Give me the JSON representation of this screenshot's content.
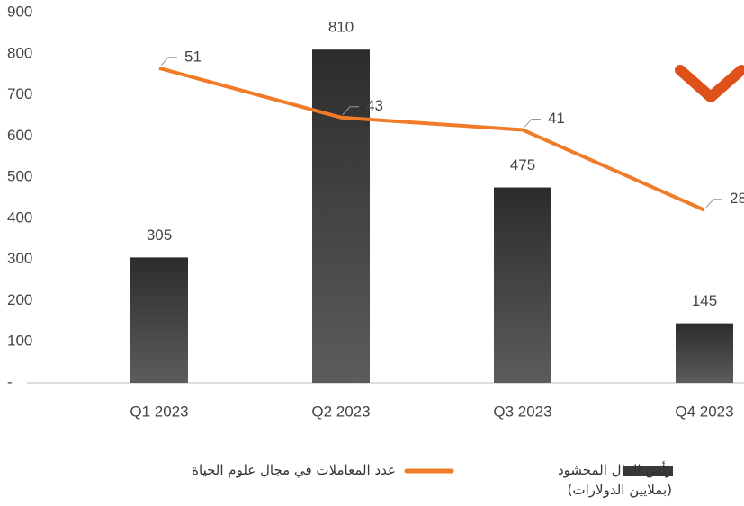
{
  "chart_data": {
    "type": "bar-line",
    "categories": [
      "Q1 2023",
      "Q2 2023",
      "Q3 2023",
      "Q4 2023"
    ],
    "series": [
      {
        "name": "رأس المال المحشود (بملايين الدولارات)",
        "type": "bar",
        "color": "#3a3a3a",
        "values": [
          305,
          810,
          475,
          145
        ]
      },
      {
        "name": "عدد المعاملات في مجال علوم الحياة",
        "type": "line",
        "color": "#f07c2a",
        "axis": "y2",
        "values": [
          51,
          43,
          41,
          28
        ]
      }
    ],
    "ylim": [
      0,
      900
    ],
    "yticks": [
      {
        "value": 0,
        "label": "-"
      },
      100,
      200,
      300,
      400,
      500,
      600,
      700,
      800,
      900
    ],
    "y2lim": [
      0,
      60
    ],
    "legend": "bottom"
  }
}
